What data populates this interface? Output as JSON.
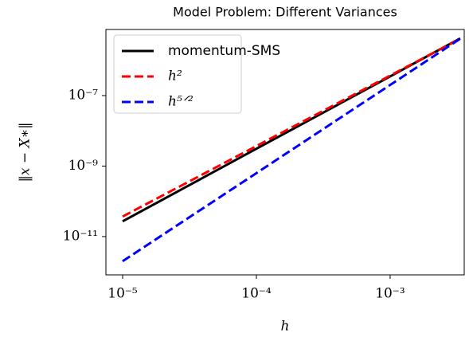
{
  "chart_data": {
    "type": "line",
    "title": "Model Problem: Different Variances",
    "xlabel": "h",
    "ylabel": "‖x − X∗‖",
    "xscale": "log",
    "yscale": "log",
    "x": [
      1e-05,
      0.0001,
      0.001,
      0.00334
    ],
    "series": [
      {
        "name": "momentum-SMS",
        "color": "#000000",
        "dash": "solid",
        "values": [
          2.7e-11,
          3.1e-09,
          3.5e-07,
          4.2e-06
        ]
      },
      {
        "name": "h²",
        "color": "#ff0000",
        "dash": "dashed",
        "values": [
          3.7e-11,
          3.7e-09,
          3.7e-07,
          4.1e-06
        ]
      },
      {
        "name": "h⁵ᐟ²",
        "color": "#0000ff",
        "dash": "dashed",
        "values": [
          2e-12,
          6.3e-10,
          2e-07,
          4.1e-06
        ]
      }
    ],
    "xlim": [
      7.5e-06,
      0.00358
    ],
    "ylim": [
      8.2e-13,
      7.5e-06
    ],
    "xticks": [
      {
        "value": 1e-05,
        "label": "10⁻⁵"
      },
      {
        "value": 0.0001,
        "label": "10⁻⁴"
      },
      {
        "value": 0.001,
        "label": "10⁻³"
      }
    ],
    "yticks": [
      {
        "value": 1e-11,
        "label": "10⁻¹¹"
      },
      {
        "value": 1e-09,
        "label": "10⁻⁹"
      },
      {
        "value": 1e-07,
        "label": "10⁻⁷"
      }
    ],
    "legend": "upper left",
    "grid": false
  }
}
